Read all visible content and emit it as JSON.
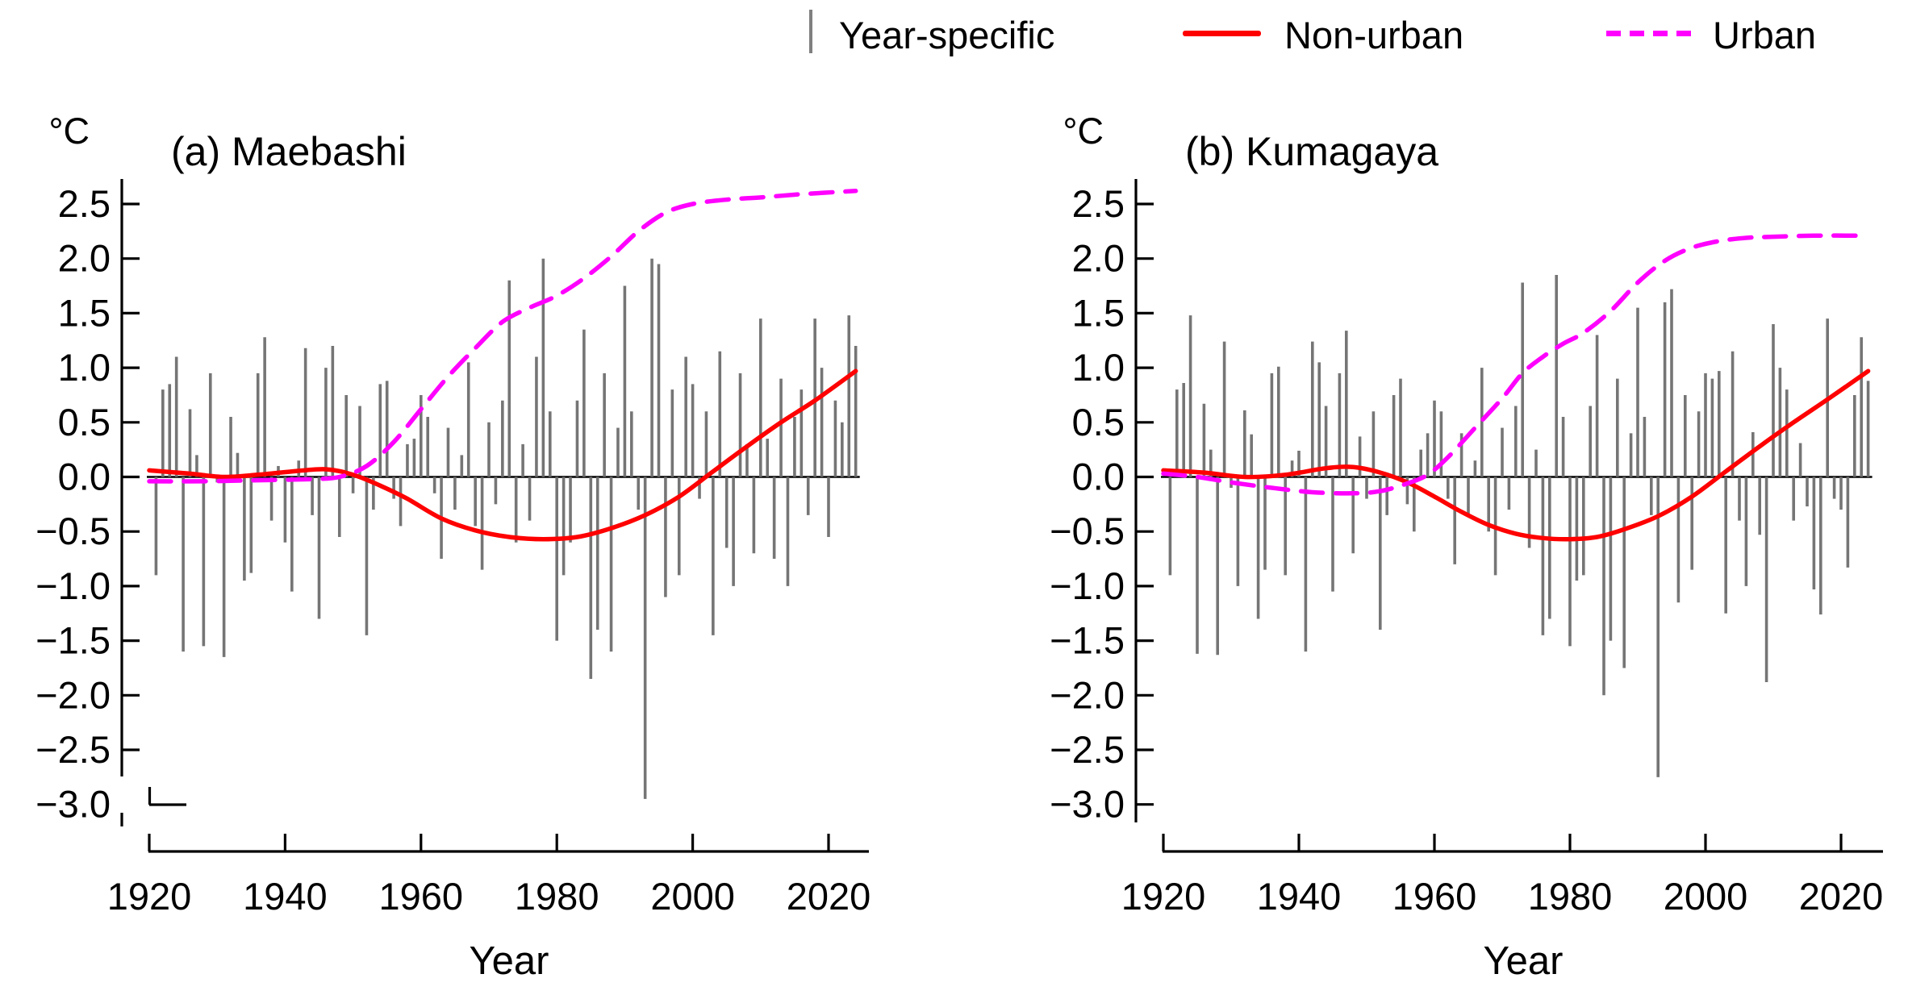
{
  "legend": {
    "items": [
      {
        "label": "Year-specific",
        "swatch": "gray-vertical-bar"
      },
      {
        "label": "Non-urban",
        "swatch": "red-solid-line"
      },
      {
        "label": "Urban",
        "swatch": "magenta-dashed-line"
      }
    ]
  },
  "colors": {
    "bar": "#757575",
    "non_urban": "#ff0000",
    "urban": "#ff00ff",
    "axis": "#000000",
    "legend_tick": "#808080"
  },
  "y_tick_labels": [
    "2.5",
    "2.0",
    "1.5",
    "1.0",
    "0.5",
    "0.0",
    "−0.5",
    "−1.0",
    "−1.5",
    "−2.0",
    "−2.5",
    "−3.0"
  ],
  "x_tick_labels": [
    "1920",
    "1940",
    "1960",
    "1980",
    "2000",
    "2020"
  ],
  "chart_data": [
    {
      "id": "a",
      "type": "bar",
      "title": "(a) Maebashi",
      "ylabel": "°C",
      "xlabel": "Year",
      "x_ticks": [
        1920,
        1940,
        1960,
        1980,
        2000,
        2020
      ],
      "y_ticks": [
        2.5,
        2.0,
        1.5,
        1.0,
        0.5,
        0.0,
        -0.5,
        -1.0,
        -1.5,
        -2.0,
        -2.5,
        -3.0
      ],
      "ylim": [
        -3.2,
        2.75
      ],
      "xlim": [
        1919,
        2026
      ],
      "grid": false,
      "legend_position": "top",
      "bars": {
        "name": "Year-specific",
        "start_year": 1921,
        "end_year": 2024,
        "values": [
          -0.9,
          0.8,
          0.85,
          1.1,
          -1.6,
          0.62,
          0.2,
          -1.55,
          0.95,
          -0.05,
          -1.65,
          0.55,
          0.22,
          -0.95,
          -0.88,
          0.95,
          1.28,
          -0.4,
          0.1,
          -0.6,
          -1.05,
          0.15,
          1.18,
          -0.35,
          -1.3,
          1.0,
          1.2,
          -0.55,
          0.75,
          -0.15,
          0.65,
          -1.45,
          -0.3,
          0.85,
          0.88,
          -0.2,
          -0.45,
          0.3,
          0.35,
          0.75,
          0.55,
          -0.15,
          -0.75,
          0.45,
          -0.3,
          0.2,
          1.05,
          -0.45,
          -0.85,
          0.5,
          -0.25,
          0.7,
          1.8,
          -0.6,
          0.3,
          -0.4,
          1.1,
          2.0,
          0.6,
          -1.5,
          -0.9,
          -0.6,
          0.7,
          1.35,
          -1.85,
          -1.4,
          0.95,
          -1.6,
          0.45,
          1.75,
          0.6,
          -0.3,
          -2.95,
          2.0,
          1.95,
          -1.1,
          0.8,
          -0.9,
          1.1,
          0.85,
          -0.2,
          0.6,
          -1.45,
          1.15,
          -0.65,
          -1.0,
          0.95,
          0.3,
          -0.7,
          1.45,
          0.35,
          -0.75,
          0.9,
          -1.0,
          0.55,
          0.8,
          -0.35,
          1.45,
          1.0,
          -0.55,
          0.7,
          0.5,
          1.48,
          1.2
        ]
      },
      "series": [
        {
          "name": "Non-urban",
          "style": "solid",
          "color": "#ff0000",
          "points": [
            [
              1920,
              0.06
            ],
            [
              1926,
              0.03
            ],
            [
              1931,
              0.0
            ],
            [
              1936,
              0.02
            ],
            [
              1941,
              0.05
            ],
            [
              1946,
              0.07
            ],
            [
              1950,
              0.02
            ],
            [
              1954,
              -0.08
            ],
            [
              1958,
              -0.2
            ],
            [
              1963,
              -0.38
            ],
            [
              1968,
              -0.49
            ],
            [
              1973,
              -0.55
            ],
            [
              1978,
              -0.57
            ],
            [
              1983,
              -0.55
            ],
            [
              1988,
              -0.47
            ],
            [
              1993,
              -0.35
            ],
            [
              1998,
              -0.18
            ],
            [
              2003,
              0.05
            ],
            [
              2008,
              0.28
            ],
            [
              2013,
              0.5
            ],
            [
              2018,
              0.7
            ],
            [
              2024,
              0.97
            ]
          ]
        },
        {
          "name": "Urban",
          "style": "dashed",
          "color": "#ff00ff",
          "points": [
            [
              1920,
              -0.04
            ],
            [
              1928,
              -0.04
            ],
            [
              1936,
              -0.03
            ],
            [
              1944,
              -0.02
            ],
            [
              1948,
              0.0
            ],
            [
              1952,
              0.1
            ],
            [
              1956,
              0.32
            ],
            [
              1960,
              0.62
            ],
            [
              1964,
              0.92
            ],
            [
              1968,
              1.18
            ],
            [
              1972,
              1.42
            ],
            [
              1976,
              1.55
            ],
            [
              1980,
              1.66
            ],
            [
              1984,
              1.82
            ],
            [
              1988,
              2.02
            ],
            [
              1992,
              2.25
            ],
            [
              1996,
              2.42
            ],
            [
              2000,
              2.5
            ],
            [
              2005,
              2.54
            ],
            [
              2010,
              2.56
            ],
            [
              2016,
              2.59
            ],
            [
              2024,
              2.62
            ]
          ]
        }
      ]
    },
    {
      "id": "b",
      "type": "bar",
      "title": "(b) Kumagaya",
      "ylabel": "°C",
      "xlabel": "Year",
      "x_ticks": [
        1920,
        1940,
        1960,
        1980,
        2000,
        2020
      ],
      "y_ticks": [
        2.5,
        2.0,
        1.5,
        1.0,
        0.5,
        0.0,
        -0.5,
        -1.0,
        -1.5,
        -2.0,
        -2.5,
        -3.0
      ],
      "ylim": [
        -3.2,
        2.75
      ],
      "xlim": [
        1919,
        2026
      ],
      "grid": false,
      "legend_position": "top",
      "bars": {
        "name": "Year-specific",
        "start_year": 1921,
        "end_year": 2024,
        "values": [
          -0.9,
          0.8,
          0.86,
          1.48,
          -1.62,
          0.67,
          0.25,
          -1.63,
          1.24,
          -0.1,
          -1.0,
          0.61,
          0.39,
          -1.3,
          -0.85,
          0.95,
          1.01,
          -0.9,
          0.15,
          0.24,
          -1.6,
          1.24,
          1.05,
          0.65,
          -1.05,
          0.95,
          1.34,
          -0.7,
          0.37,
          -0.2,
          0.6,
          -1.4,
          -0.35,
          0.75,
          0.9,
          -0.25,
          -0.5,
          0.25,
          0.4,
          0.7,
          0.6,
          -0.2,
          -0.8,
          0.4,
          -0.35,
          0.15,
          1.0,
          -0.5,
          -0.9,
          0.45,
          -0.3,
          0.65,
          1.78,
          -0.65,
          0.25,
          -1.45,
          -1.3,
          1.85,
          0.55,
          -1.55,
          -0.95,
          -0.9,
          0.65,
          1.3,
          -2.0,
          -1.5,
          0.9,
          -1.75,
          0.4,
          1.55,
          0.55,
          -0.35,
          -2.75,
          1.6,
          1.72,
          -1.15,
          0.75,
          -0.85,
          0.6,
          0.95,
          0.9,
          0.97,
          -1.25,
          1.15,
          -0.4,
          -1.0,
          0.41,
          -0.53,
          -1.88,
          1.4,
          1.0,
          0.8,
          -0.4,
          0.31,
          -0.27,
          -1.03,
          -1.26,
          1.45,
          -0.2,
          -0.3,
          -0.83,
          0.75,
          1.28,
          0.88
        ]
      },
      "series": [
        {
          "name": "Non-urban",
          "style": "solid",
          "color": "#ff0000",
          "points": [
            [
              1920,
              0.06
            ],
            [
              1926,
              0.04
            ],
            [
              1932,
              0.0
            ],
            [
              1938,
              0.02
            ],
            [
              1944,
              0.08
            ],
            [
              1948,
              0.09
            ],
            [
              1952,
              0.04
            ],
            [
              1956,
              -0.05
            ],
            [
              1960,
              -0.18
            ],
            [
              1964,
              -0.32
            ],
            [
              1968,
              -0.44
            ],
            [
              1972,
              -0.52
            ],
            [
              1976,
              -0.56
            ],
            [
              1980,
              -0.57
            ],
            [
              1984,
              -0.55
            ],
            [
              1988,
              -0.48
            ],
            [
              1993,
              -0.36
            ],
            [
              1998,
              -0.18
            ],
            [
              2003,
              0.05
            ],
            [
              2008,
              0.28
            ],
            [
              2013,
              0.5
            ],
            [
              2018,
              0.71
            ],
            [
              2024,
              0.97
            ]
          ]
        },
        {
          "name": "Urban",
          "style": "dashed",
          "color": "#ff00ff",
          "points": [
            [
              1920,
              0.03
            ],
            [
              1925,
              0.0
            ],
            [
              1930,
              -0.05
            ],
            [
              1936,
              -0.1
            ],
            [
              1942,
              -0.14
            ],
            [
              1948,
              -0.15
            ],
            [
              1952,
              -0.13
            ],
            [
              1956,
              -0.06
            ],
            [
              1959,
              0.02
            ],
            [
              1962,
              0.18
            ],
            [
              1966,
              0.45
            ],
            [
              1970,
              0.72
            ],
            [
              1973,
              0.95
            ],
            [
              1976,
              1.1
            ],
            [
              1979,
              1.22
            ],
            [
              1982,
              1.32
            ],
            [
              1986,
              1.52
            ],
            [
              1990,
              1.78
            ],
            [
              1994,
              1.98
            ],
            [
              1998,
              2.1
            ],
            [
              2002,
              2.16
            ],
            [
              2006,
              2.19
            ],
            [
              2010,
              2.2
            ],
            [
              2016,
              2.21
            ],
            [
              2024,
              2.21
            ]
          ]
        }
      ]
    }
  ]
}
